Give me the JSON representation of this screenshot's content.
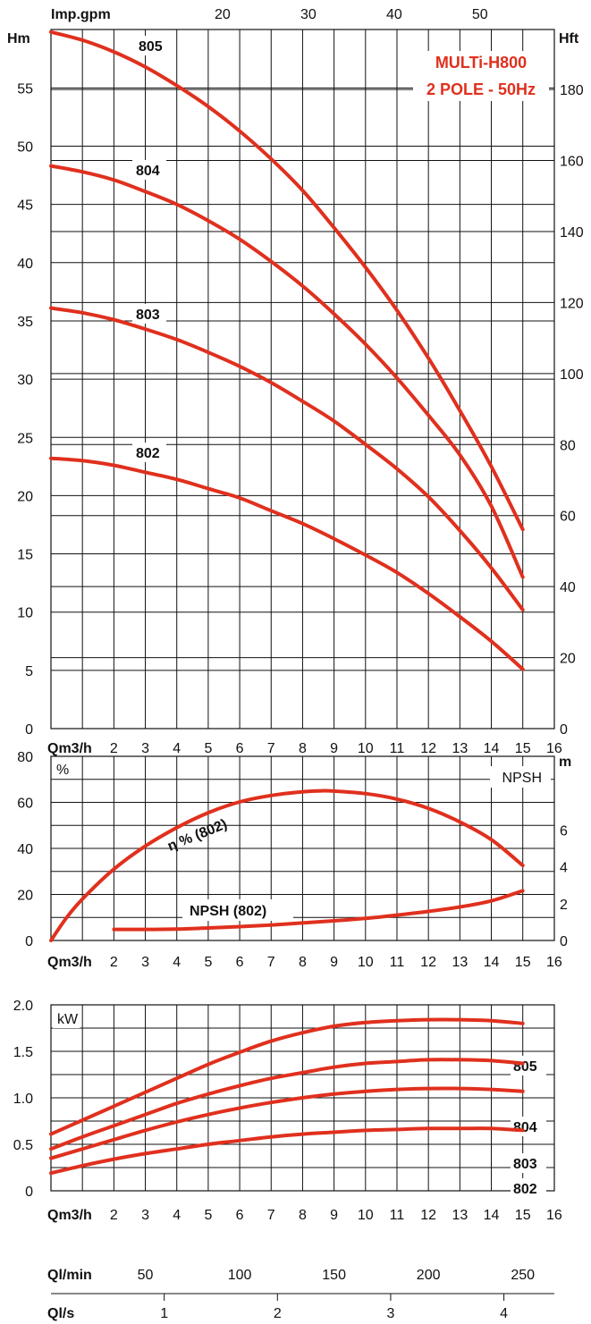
{
  "colors": {
    "curve": "#e0301e",
    "grid": "#111111",
    "title": "#e0301e",
    "text": "#111111"
  },
  "chart_data": [
    {
      "type": "line",
      "title": "MULTi-H800",
      "subtitle": "2 POLE - 50Hz",
      "xlabel": "Qm3/h",
      "ylabel_left": "Hm",
      "ylabel_right": "Hft",
      "top_axis_label": "Imp.gpm",
      "x_ticks": [
        "2",
        "3",
        "4",
        "5",
        "6",
        "7",
        "8",
        "9",
        "10",
        "11",
        "12",
        "13",
        "14",
        "15",
        "16"
      ],
      "y_ticks_left": [
        "0",
        "5",
        "10",
        "15",
        "20",
        "25",
        "30",
        "35",
        "40",
        "45",
        "50",
        "55"
      ],
      "y_ticks_right": [
        "0",
        "20",
        "40",
        "60",
        "80",
        "100",
        "120",
        "140",
        "160",
        "180"
      ],
      "top_ticks": [
        "20",
        "30",
        "40",
        "50"
      ],
      "xlim": [
        0,
        16
      ],
      "ylim": [
        0,
        60
      ],
      "grid": true,
      "series": [
        {
          "name": "805",
          "x": [
            0,
            1,
            2,
            3,
            4,
            5,
            6,
            7,
            8,
            9,
            10,
            11,
            12,
            13,
            14,
            15
          ],
          "y": [
            59.8,
            59.1,
            58.1,
            56.8,
            55.2,
            53.4,
            51.3,
            48.9,
            46.2,
            43.0,
            39.6,
            35.9,
            31.8,
            27.3,
            22.5,
            17.1
          ]
        },
        {
          "name": "804",
          "x": [
            0,
            1,
            2,
            3,
            4,
            5,
            6,
            7,
            8,
            9,
            10,
            11,
            12,
            13,
            14,
            15
          ],
          "y": [
            48.3,
            47.8,
            47.1,
            46.1,
            45.0,
            43.6,
            42.0,
            40.1,
            38.0,
            35.6,
            33.0,
            30.1,
            26.9,
            23.5,
            19.1,
            13.0
          ]
        },
        {
          "name": "803",
          "x": [
            0,
            1,
            2,
            3,
            4,
            5,
            6,
            7,
            8,
            9,
            10,
            11,
            12,
            13,
            14,
            15
          ],
          "y": [
            36.1,
            35.7,
            35.1,
            34.3,
            33.4,
            32.3,
            31.1,
            29.7,
            28.1,
            26.4,
            24.4,
            22.3,
            19.9,
            17.0,
            13.8,
            10.2
          ]
        },
        {
          "name": "802",
          "x": [
            0,
            1,
            2,
            3,
            4,
            5,
            6,
            7,
            8,
            9,
            10,
            11,
            12,
            13,
            14,
            15
          ],
          "y": [
            23.2,
            23.0,
            22.6,
            22.0,
            21.4,
            20.6,
            19.8,
            18.7,
            17.6,
            16.3,
            14.9,
            13.4,
            11.6,
            9.6,
            7.5,
            5.1
          ]
        }
      ]
    },
    {
      "type": "line",
      "xlabel": "Qm3/h",
      "ylabel_left": "%",
      "ylabel_right": "m",
      "right_inner_label": "NPSH",
      "x_ticks": [
        "2",
        "3",
        "4",
        "5",
        "6",
        "7",
        "8",
        "9",
        "10",
        "11",
        "12",
        "13",
        "14",
        "15",
        "16"
      ],
      "y_ticks_left": [
        "0",
        "20",
        "40",
        "60",
        "80"
      ],
      "y_ticks_right": [
        "0",
        "2",
        "4",
        "6"
      ],
      "xlim": [
        0,
        16
      ],
      "ylim": [
        0,
        80
      ],
      "grid": true,
      "series": [
        {
          "name": "η % (802)",
          "x": [
            0,
            0.5,
            1,
            2,
            3,
            4,
            5,
            6,
            7,
            8,
            8.6,
            9,
            10,
            11,
            12,
            13,
            14,
            15
          ],
          "y": [
            0,
            10,
            18,
            31,
            41,
            49,
            55.5,
            60.2,
            63.0,
            64.6,
            65.0,
            64.9,
            63.8,
            61.4,
            57.4,
            51.5,
            43.8,
            32.6
          ]
        },
        {
          "name": "NPSH (802)",
          "x": [
            2,
            3,
            4,
            5,
            6,
            7,
            8,
            9,
            10,
            11,
            12,
            13,
            14,
            15
          ],
          "y": [
            0.6,
            0.6,
            0.62,
            0.68,
            0.75,
            0.84,
            0.95,
            1.07,
            1.2,
            1.38,
            1.58,
            1.82,
            2.15,
            2.7
          ]
        }
      ]
    },
    {
      "type": "line",
      "xlabel": "Qm3/h",
      "ylabel": "kW",
      "x_ticks": [
        "2",
        "3",
        "4",
        "5",
        "6",
        "7",
        "8",
        "9",
        "10",
        "11",
        "12",
        "13",
        "14",
        "15",
        "16"
      ],
      "y_ticks": [
        "0",
        "0.5",
        "1.0",
        "1.5",
        "2.0"
      ],
      "xlim": [
        0,
        16
      ],
      "ylim": [
        0,
        2.0
      ],
      "grid": true,
      "series": [
        {
          "name": "805",
          "x": [
            0,
            1,
            2,
            3,
            4,
            5,
            6,
            7,
            8,
            9,
            10,
            11,
            12,
            13,
            14,
            15
          ],
          "y": [
            0.61,
            0.76,
            0.91,
            1.06,
            1.21,
            1.36,
            1.49,
            1.61,
            1.7,
            1.77,
            1.81,
            1.83,
            1.84,
            1.84,
            1.83,
            1.8
          ]
        },
        {
          "name": "804",
          "x": [
            0,
            1,
            2,
            3,
            4,
            5,
            6,
            7,
            8,
            9,
            10,
            11,
            12,
            13,
            14,
            15
          ],
          "y": [
            0.45,
            0.58,
            0.7,
            0.82,
            0.94,
            1.04,
            1.13,
            1.21,
            1.27,
            1.33,
            1.37,
            1.39,
            1.41,
            1.41,
            1.4,
            1.37
          ]
        },
        {
          "name": "803",
          "x": [
            0,
            1,
            2,
            3,
            4,
            5,
            6,
            7,
            8,
            9,
            10,
            11,
            12,
            13,
            14,
            15
          ],
          "y": [
            0.35,
            0.45,
            0.55,
            0.65,
            0.74,
            0.82,
            0.89,
            0.95,
            1.0,
            1.04,
            1.07,
            1.09,
            1.1,
            1.1,
            1.09,
            1.07
          ]
        },
        {
          "name": "802",
          "x": [
            0,
            1,
            2,
            3,
            4,
            5,
            6,
            7,
            8,
            9,
            10,
            11,
            12,
            13,
            14,
            15
          ],
          "y": [
            0.19,
            0.27,
            0.34,
            0.4,
            0.45,
            0.5,
            0.54,
            0.58,
            0.61,
            0.63,
            0.65,
            0.66,
            0.67,
            0.67,
            0.67,
            0.65
          ]
        }
      ]
    }
  ],
  "bottom_axes": {
    "ql_min": {
      "label": "Ql/min",
      "ticks": [
        "50",
        "100",
        "150",
        "200",
        "250"
      ]
    },
    "ql_s": {
      "label": "Ql/s",
      "ticks": [
        "1",
        "2",
        "3",
        "4"
      ]
    }
  }
}
